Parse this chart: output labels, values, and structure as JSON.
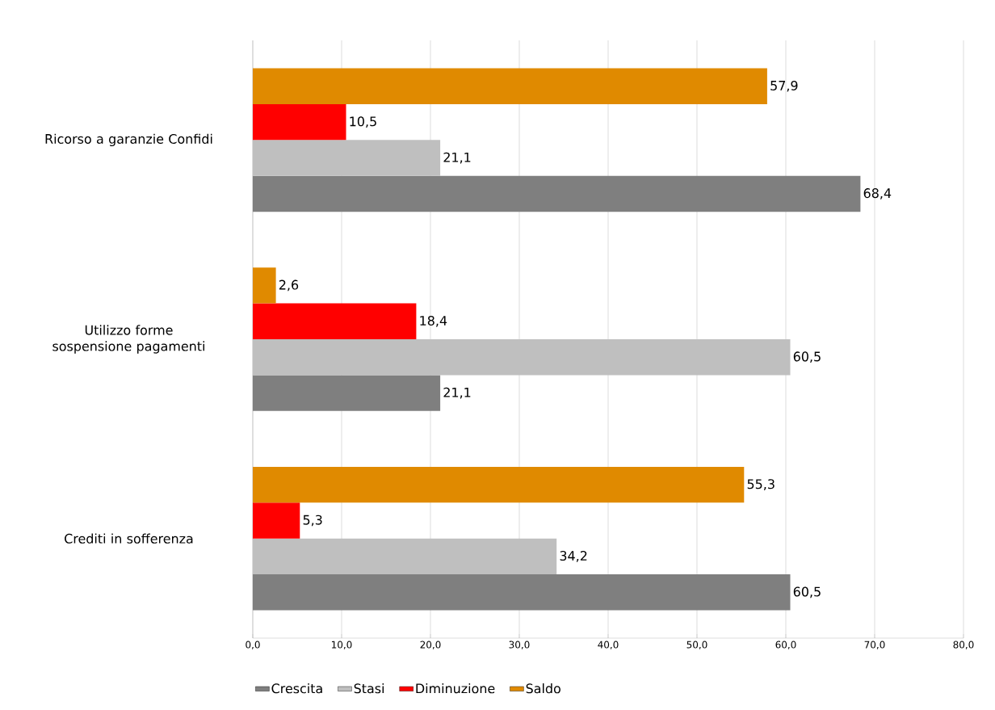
{
  "chart_data": {
    "type": "bar",
    "orientation": "horizontal",
    "categories": [
      "Ricorso a garanzie Confidi",
      "Utilizzo forme sospensione pagamenti",
      "Crediti in sofferenza"
    ],
    "series": [
      {
        "name": "Crescita",
        "color": "#7f7f7f",
        "values": [
          68.4,
          21.1,
          60.5
        ],
        "value_labels": [
          "68,4",
          "21,1",
          "60,5"
        ]
      },
      {
        "name": "Stasi",
        "color": "#bfbfbf",
        "values": [
          21.1,
          60.5,
          34.2
        ],
        "value_labels": [
          "21,1",
          "60,5",
          "34,2"
        ]
      },
      {
        "name": "Diminuzione",
        "color": "#ff0000",
        "values": [
          10.5,
          18.4,
          5.3
        ],
        "value_labels": [
          "10,5",
          "18,4",
          "5,3"
        ]
      },
      {
        "name": "Saldo",
        "color": "#e08a00",
        "values": [
          57.9,
          2.6,
          55.3
        ],
        "value_labels": [
          "57,9",
          "2,6",
          "55,3"
        ]
      }
    ],
    "xlim": [
      0,
      80
    ],
    "xticks": [
      {
        "value": 0,
        "label": "0,0"
      },
      {
        "value": 10,
        "label": "10,0"
      },
      {
        "value": 20,
        "label": "20,0"
      },
      {
        "value": 30,
        "label": "30,0"
      },
      {
        "value": 40,
        "label": "40,0"
      },
      {
        "value": 50,
        "label": "50,0"
      },
      {
        "value": 60,
        "label": "60,0"
      },
      {
        "value": 70,
        "label": "70,0"
      },
      {
        "value": 80,
        "label": "80,0"
      }
    ],
    "grid": "x",
    "legend": "bottom left"
  }
}
